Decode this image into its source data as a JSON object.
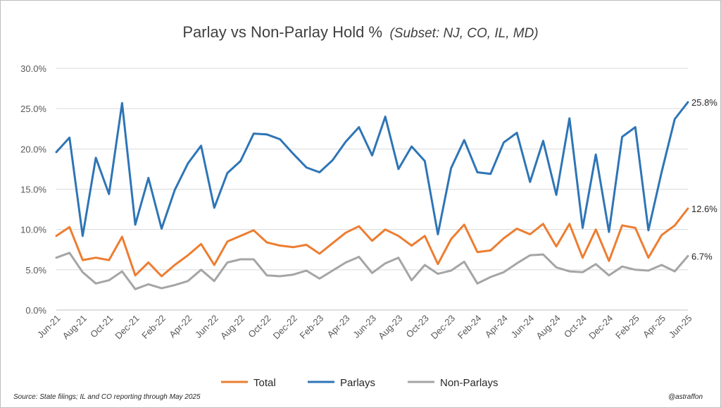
{
  "chart_data": {
    "type": "line",
    "title": "Parlay vs Non-Parlay Hold %",
    "subtitle": "(Subset: NJ, CO, IL, MD)",
    "ylim": [
      0,
      30
    ],
    "yticks": [
      "0.0%",
      "5.0%",
      "10.0%",
      "15.0%",
      "20.0%",
      "25.0%",
      "30.0%"
    ],
    "y_unit": "%",
    "grid": "horizontal",
    "legend_position": "bottom",
    "x": [
      "Jun-21",
      "Jul-21",
      "Aug-21",
      "Sep-21",
      "Oct-21",
      "Nov-21",
      "Dec-21",
      "Jan-22",
      "Feb-22",
      "Mar-22",
      "Apr-22",
      "May-22",
      "Jun-22",
      "Jul-22",
      "Aug-22",
      "Sep-22",
      "Oct-22",
      "Nov-22",
      "Dec-22",
      "Jan-23",
      "Feb-23",
      "Mar-23",
      "Apr-23",
      "May-23",
      "Jun-23",
      "Jul-23",
      "Aug-23",
      "Sep-23",
      "Oct-23",
      "Nov-23",
      "Dec-23",
      "Jan-24",
      "Feb-24",
      "Mar-24",
      "Apr-24",
      "May-24",
      "Jun-24",
      "Jul-24",
      "Aug-24",
      "Sep-24",
      "Oct-24",
      "Nov-24",
      "Dec-24",
      "Jan-25",
      "Feb-25",
      "Mar-25",
      "Apr-25",
      "May-25",
      "Jun-25"
    ],
    "xticks": [
      "Jun-21",
      "Aug-21",
      "Oct-21",
      "Dec-21",
      "Feb-22",
      "Apr-22",
      "Jun-22",
      "Aug-22",
      "Oct-22",
      "Dec-22",
      "Feb-23",
      "Apr-23",
      "Jun-23",
      "Aug-23",
      "Oct-23",
      "Dec-23",
      "Feb-24",
      "Apr-24",
      "Jun-24",
      "Aug-24",
      "Oct-24",
      "Dec-24",
      "Feb-25",
      "Apr-25",
      "Jun-25"
    ],
    "series": [
      {
        "name": "Total",
        "color": "#ed7d31",
        "values": [
          9.2,
          10.3,
          6.2,
          6.5,
          6.2,
          9.1,
          4.3,
          5.9,
          4.2,
          5.6,
          6.8,
          8.2,
          5.6,
          8.5,
          9.2,
          9.9,
          8.4,
          8.0,
          7.8,
          8.1,
          7.0,
          8.3,
          9.6,
          10.4,
          8.6,
          10.0,
          9.2,
          8.0,
          9.2,
          5.7,
          8.8,
          10.6,
          7.2,
          7.4,
          8.9,
          10.1,
          9.4,
          10.7,
          7.9,
          10.7,
          6.5,
          10.0,
          6.1,
          10.5,
          10.2,
          6.5,
          9.3,
          10.5,
          12.6
        ],
        "end_label": "12.6%"
      },
      {
        "name": "Parlays",
        "color": "#2e75b6",
        "values": [
          19.6,
          21.4,
          9.2,
          18.9,
          14.4,
          25.7,
          10.6,
          16.4,
          10.1,
          14.9,
          18.2,
          20.4,
          12.7,
          17.0,
          18.5,
          21.9,
          21.8,
          21.2,
          19.4,
          17.7,
          17.1,
          18.6,
          20.9,
          22.7,
          19.2,
          24.0,
          17.5,
          20.3,
          18.5,
          9.4,
          17.6,
          21.1,
          17.1,
          16.9,
          20.8,
          22.0,
          15.9,
          21.0,
          14.3,
          23.8,
          10.2,
          19.3,
          9.7,
          21.5,
          22.7,
          9.9,
          17.1,
          23.7,
          25.8
        ],
        "end_label": "25.8%"
      },
      {
        "name": "Non-Parlays",
        "color": "#a5a5a5",
        "values": [
          6.5,
          7.1,
          4.7,
          3.3,
          3.7,
          4.8,
          2.6,
          3.2,
          2.7,
          3.1,
          3.6,
          5.0,
          3.6,
          5.9,
          6.3,
          6.3,
          4.3,
          4.2,
          4.4,
          4.9,
          3.9,
          4.9,
          5.9,
          6.6,
          4.6,
          5.8,
          6.5,
          3.7,
          5.6,
          4.5,
          4.9,
          6.0,
          3.3,
          4.1,
          4.7,
          5.8,
          6.8,
          6.9,
          5.3,
          4.8,
          4.7,
          5.7,
          4.3,
          5.4,
          5.0,
          4.9,
          5.6,
          4.8,
          6.7
        ],
        "end_label": "6.7%"
      }
    ]
  },
  "footer": {
    "source": "Source: State filings;  IL and CO reporting through  May 2025",
    "credit": "@astraffon"
  }
}
